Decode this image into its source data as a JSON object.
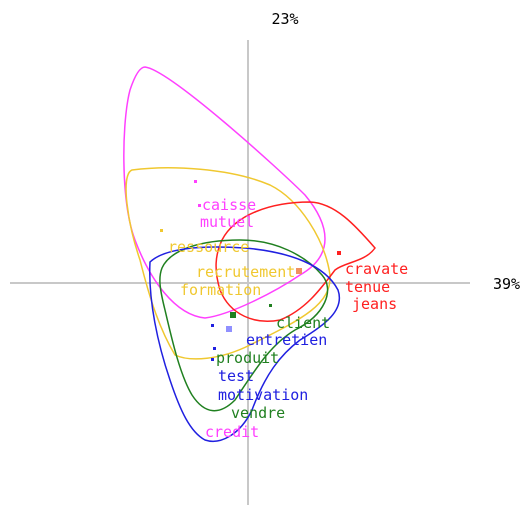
{
  "axes": {
    "vertical_label": "23%",
    "horizontal_label": "39%"
  },
  "words": [
    "caisse",
    "mutuel",
    "ressource",
    "recrutement",
    "formation",
    "cravate",
    "tenue",
    "jeans",
    "client",
    "entretien",
    "produit",
    "test",
    "motivation",
    "vendre",
    "credit"
  ]
}
